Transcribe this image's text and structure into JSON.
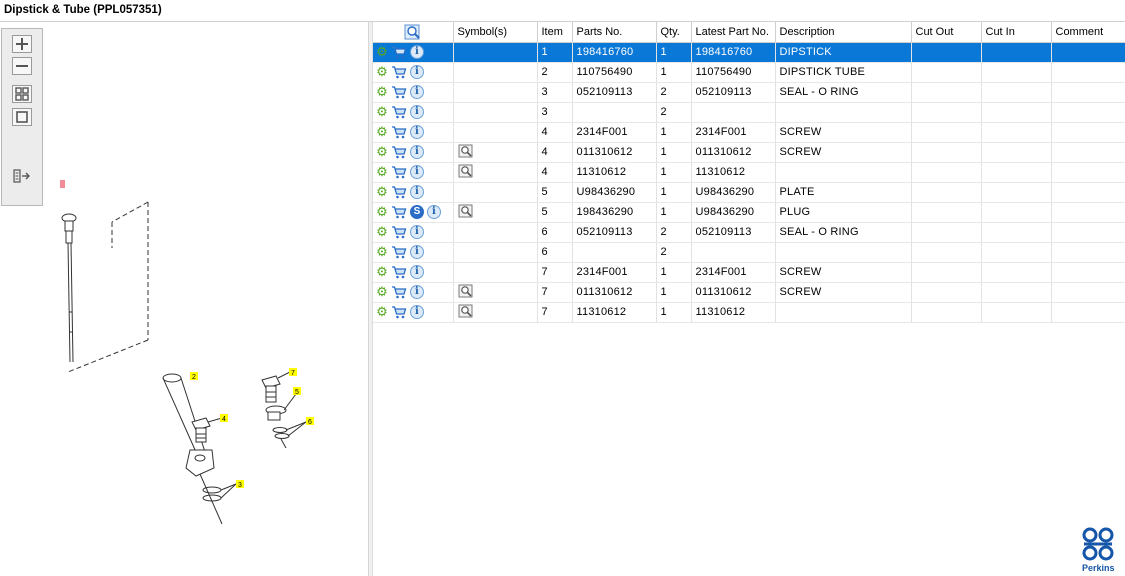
{
  "window": {
    "title": "Dipstick & Tube (PPL057351)"
  },
  "brand": {
    "name": "Perkins",
    "accent": "#1656a8"
  },
  "toolbox": {
    "buttons": [
      {
        "name": "zoom-in-icon"
      },
      {
        "name": "zoom-out-icon"
      },
      {
        "name": "fit-all-icon"
      },
      {
        "name": "actual-size-icon"
      },
      {
        "name": "export-list-icon"
      }
    ]
  },
  "diagram": {
    "callouts": [
      "1",
      "2",
      "3",
      "4",
      "5",
      "6",
      "7"
    ]
  },
  "grid": {
    "columns": [
      "",
      "Symbol(s)",
      "Item",
      "Parts No.",
      "Qty.",
      "Latest Part No.",
      "Description",
      "Cut Out",
      "Cut In",
      "Comment"
    ],
    "selected_color": "#0a78d7",
    "rows": [
      {
        "item": "1",
        "part_no": "198416760",
        "qty": "1",
        "latest": "198416760",
        "desc": "DIPSTICK",
        "cut_out": "",
        "cut_in": "",
        "comment": "",
        "symbol": false,
        "s": false,
        "selected": true
      },
      {
        "item": "2",
        "part_no": "110756490",
        "qty": "1",
        "latest": "110756490",
        "desc": "DIPSTICK TUBE",
        "cut_out": "",
        "cut_in": "",
        "comment": "",
        "symbol": false,
        "s": false,
        "selected": false
      },
      {
        "item": "3",
        "part_no": "052109113",
        "qty": "2",
        "latest": "052109113",
        "desc": "SEAL - O RING",
        "cut_out": "",
        "cut_in": "",
        "comment": "",
        "symbol": false,
        "s": false,
        "selected": false
      },
      {
        "item": "3",
        "part_no": "",
        "qty": "2",
        "latest": "",
        "desc": "",
        "cut_out": "",
        "cut_in": "",
        "comment": "",
        "symbol": false,
        "s": false,
        "selected": false
      },
      {
        "item": "4",
        "part_no": "2314F001",
        "qty": "1",
        "latest": "2314F001",
        "desc": "SCREW",
        "cut_out": "",
        "cut_in": "",
        "comment": "",
        "symbol": false,
        "s": false,
        "selected": false
      },
      {
        "item": "4",
        "part_no": "011310612",
        "qty": "1",
        "latest": "011310612",
        "desc": "SCREW",
        "cut_out": "",
        "cut_in": "",
        "comment": "",
        "symbol": true,
        "s": false,
        "selected": false
      },
      {
        "item": "4",
        "part_no": "11310612",
        "qty": "1",
        "latest": "11310612",
        "desc": "",
        "cut_out": "",
        "cut_in": "",
        "comment": "",
        "symbol": true,
        "s": false,
        "selected": false
      },
      {
        "item": "5",
        "part_no": "U98436290",
        "qty": "1",
        "latest": "U98436290",
        "desc": "PLATE",
        "cut_out": "",
        "cut_in": "",
        "comment": "",
        "symbol": false,
        "s": false,
        "selected": false
      },
      {
        "item": "5",
        "part_no": "198436290",
        "qty": "1",
        "latest": "U98436290",
        "desc": "PLUG",
        "cut_out": "",
        "cut_in": "",
        "comment": "",
        "symbol": true,
        "s": true,
        "selected": false
      },
      {
        "item": "6",
        "part_no": "052109113",
        "qty": "2",
        "latest": "052109113",
        "desc": "SEAL - O RING",
        "cut_out": "",
        "cut_in": "",
        "comment": "",
        "symbol": false,
        "s": false,
        "selected": false
      },
      {
        "item": "6",
        "part_no": "",
        "qty": "2",
        "latest": "",
        "desc": "",
        "cut_out": "",
        "cut_in": "",
        "comment": "",
        "symbol": false,
        "s": false,
        "selected": false
      },
      {
        "item": "7",
        "part_no": "2314F001",
        "qty": "1",
        "latest": "2314F001",
        "desc": "SCREW",
        "cut_out": "",
        "cut_in": "",
        "comment": "",
        "symbol": false,
        "s": false,
        "selected": false
      },
      {
        "item": "7",
        "part_no": "011310612",
        "qty": "1",
        "latest": "011310612",
        "desc": "SCREW",
        "cut_out": "",
        "cut_in": "",
        "comment": "",
        "symbol": true,
        "s": false,
        "selected": false
      },
      {
        "item": "7",
        "part_no": "11310612",
        "qty": "1",
        "latest": "11310612",
        "desc": "",
        "cut_out": "",
        "cut_in": "",
        "comment": "",
        "symbol": true,
        "s": false,
        "selected": false
      }
    ]
  }
}
